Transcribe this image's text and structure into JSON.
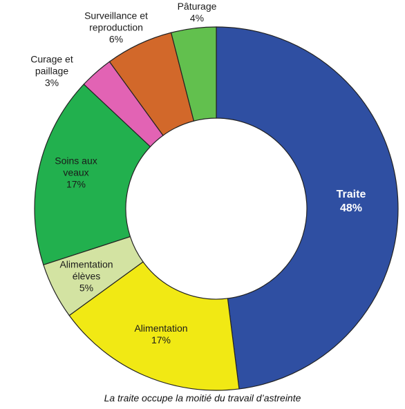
{
  "chart_data": {
    "type": "donut",
    "caption": "La traite occupe la moitié du travail d’astreinte",
    "categories": [
      "Traite",
      "Alimentation",
      "Alimentation élèves",
      "Soins aux veaux",
      "Curage et paillage",
      "Surveillance et reproduction",
      "Pâturage"
    ],
    "values": [
      48,
      17,
      5,
      17,
      3,
      6,
      4
    ],
    "value_labels": [
      "48%",
      "17%",
      "5%",
      "17%",
      "3%",
      "6%",
      "4%"
    ],
    "colors": [
      "#2f4fa2",
      "#f1e914",
      "#d3e3a2",
      "#22b04e",
      "#e263b4",
      "#d2682a",
      "#62c04e"
    ]
  }
}
